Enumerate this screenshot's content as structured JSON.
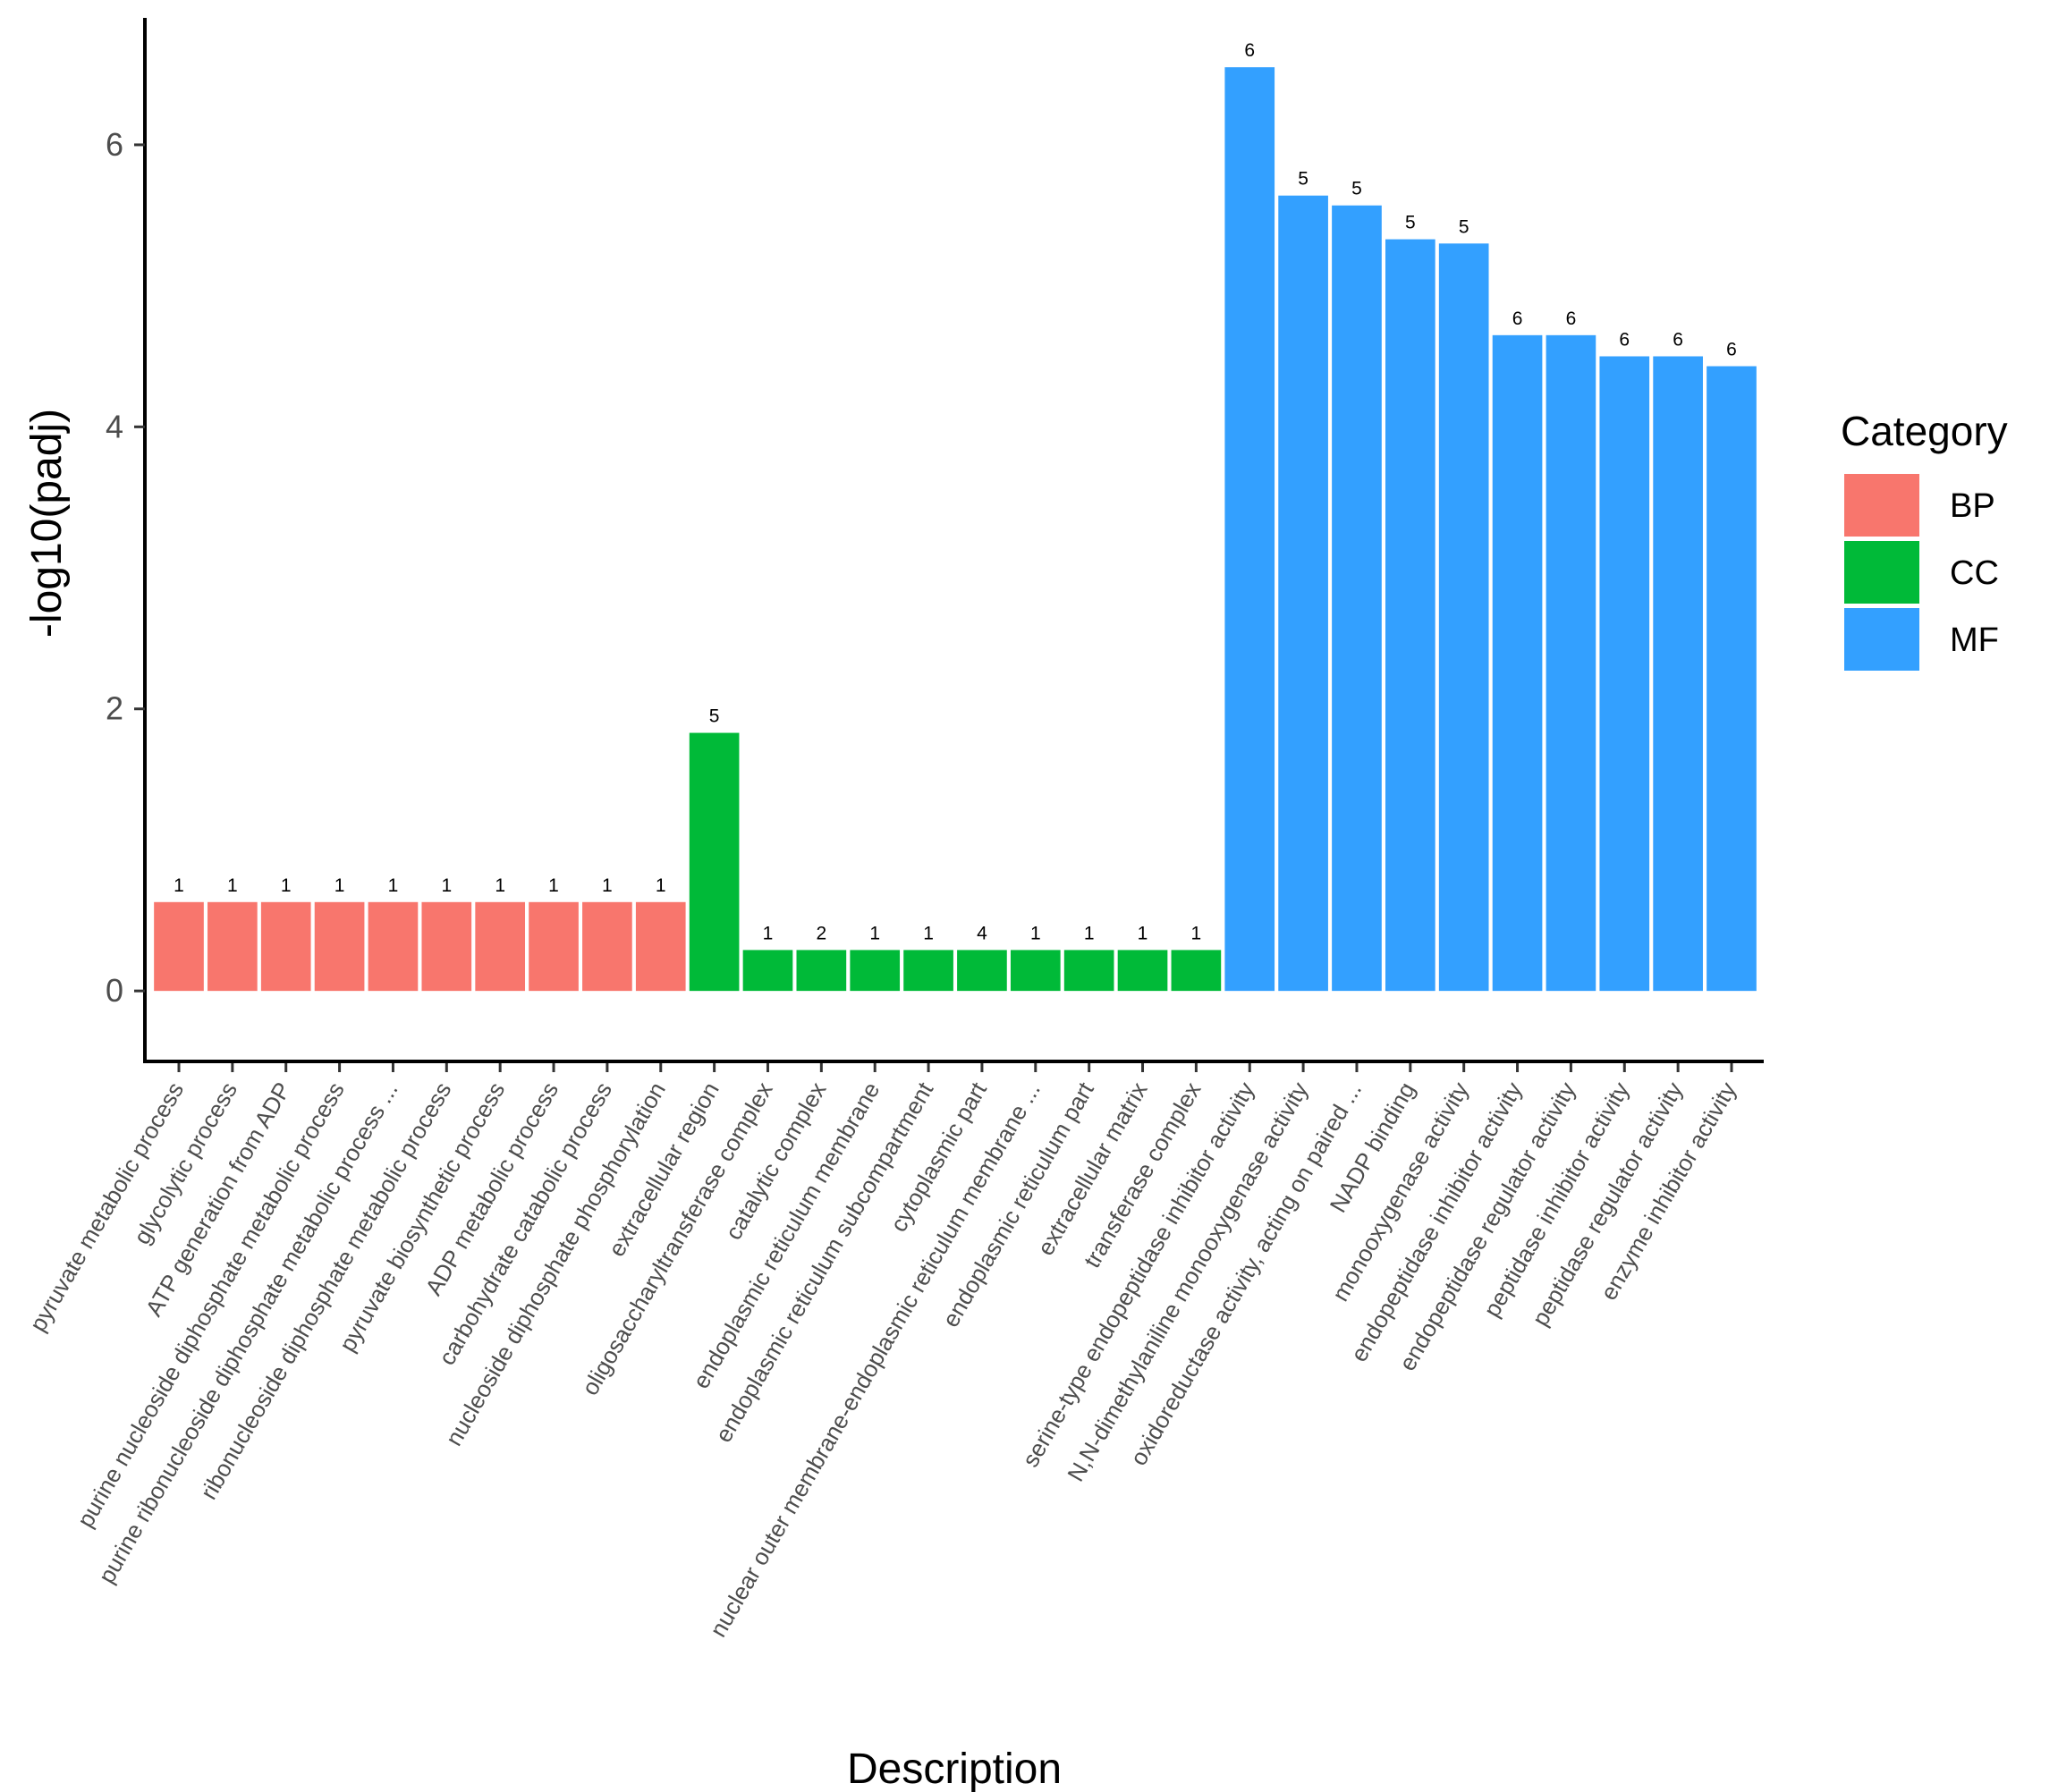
{
  "chart_data": {
    "type": "bar",
    "title": "",
    "xlabel": "Description",
    "ylabel": "-log10(padj)",
    "ylim": [
      -0.5,
      6.9
    ],
    "yticks": [
      0,
      2,
      4,
      6
    ],
    "grid": false,
    "legend": {
      "title": "Category",
      "position": "right",
      "entries": [
        {
          "name": "BP",
          "color": "#F8766D"
        },
        {
          "name": "CC",
          "color": "#00BA38"
        },
        {
          "name": "MF",
          "color": "#33A0FF"
        }
      ]
    },
    "bars": [
      {
        "label": "pyruvate metabolic process",
        "category": "BP",
        "value": 0.63,
        "count": "1"
      },
      {
        "label": "glycolytic process",
        "category": "BP",
        "value": 0.63,
        "count": "1"
      },
      {
        "label": "ATP generation from ADP",
        "category": "BP",
        "value": 0.63,
        "count": "1"
      },
      {
        "label": "purine nucleoside diphosphate metabolic process",
        "category": "BP",
        "value": 0.63,
        "count": "1"
      },
      {
        "label": "purine ribonucleoside diphosphate metabolic process ...",
        "category": "BP",
        "value": 0.63,
        "count": "1"
      },
      {
        "label": "ribonucleoside diphosphate metabolic process",
        "category": "BP",
        "value": 0.63,
        "count": "1"
      },
      {
        "label": "pyruvate biosynthetic process",
        "category": "BP",
        "value": 0.63,
        "count": "1"
      },
      {
        "label": "ADP metabolic process",
        "category": "BP",
        "value": 0.63,
        "count": "1"
      },
      {
        "label": "carbohydrate catabolic process",
        "category": "BP",
        "value": 0.63,
        "count": "1"
      },
      {
        "label": "nucleoside diphosphate phosphorylation",
        "category": "BP",
        "value": 0.63,
        "count": "1"
      },
      {
        "label": "extracellular region",
        "category": "CC",
        "value": 1.83,
        "count": "5"
      },
      {
        "label": "oligosaccharyltransferase complex",
        "category": "CC",
        "value": 0.29,
        "count": "1"
      },
      {
        "label": "catalytic complex",
        "category": "CC",
        "value": 0.29,
        "count": "2"
      },
      {
        "label": "endoplasmic reticulum membrane",
        "category": "CC",
        "value": 0.29,
        "count": "1"
      },
      {
        "label": "endoplasmic reticulum subcompartment",
        "category": "CC",
        "value": 0.29,
        "count": "1"
      },
      {
        "label": "cytoplasmic part",
        "category": "CC",
        "value": 0.29,
        "count": "4"
      },
      {
        "label": "nuclear outer membrane-endoplasmic reticulum membrane ...",
        "category": "CC",
        "value": 0.29,
        "count": "1"
      },
      {
        "label": "endoplasmic reticulum part",
        "category": "CC",
        "value": 0.29,
        "count": "1"
      },
      {
        "label": "extracellular matrix",
        "category": "CC",
        "value": 0.29,
        "count": "1"
      },
      {
        "label": "transferase complex",
        "category": "CC",
        "value": 0.29,
        "count": "1"
      },
      {
        "label": "serine-type endopeptidase inhibitor activity",
        "category": "MF",
        "value": 6.55,
        "count": "6"
      },
      {
        "label": "N,N-dimethylaniline monooxygenase activity",
        "category": "MF",
        "value": 5.64,
        "count": "5"
      },
      {
        "label": "oxidoreductase activity, acting on paired ...",
        "category": "MF",
        "value": 5.57,
        "count": "5"
      },
      {
        "label": "NADP binding",
        "category": "MF",
        "value": 5.33,
        "count": "5"
      },
      {
        "label": "monooxygenase activity",
        "category": "MF",
        "value": 5.3,
        "count": "5"
      },
      {
        "label": "endopeptidase inhibitor activity",
        "category": "MF",
        "value": 4.65,
        "count": "6"
      },
      {
        "label": "endopeptidase regulator activity",
        "category": "MF",
        "value": 4.65,
        "count": "6"
      },
      {
        "label": "peptidase inhibitor activity",
        "category": "MF",
        "value": 4.5,
        "count": "6"
      },
      {
        "label": "peptidase regulator activity",
        "category": "MF",
        "value": 4.5,
        "count": "6"
      },
      {
        "label": "enzyme inhibitor activity",
        "category": "MF",
        "value": 4.43,
        "count": "6"
      }
    ]
  }
}
